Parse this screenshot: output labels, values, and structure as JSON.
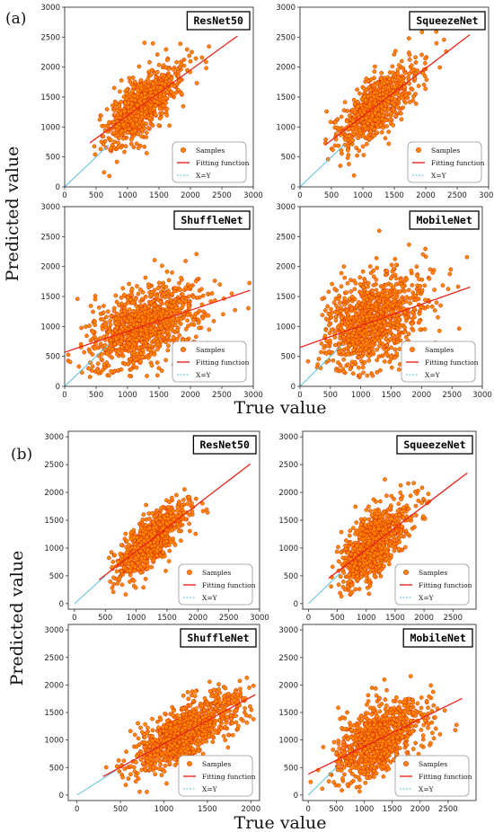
{
  "labels": {
    "panel_a": "(a)",
    "panel_b": "(b)",
    "xlabel": "True value",
    "ylabel": "Predicted value"
  },
  "legend": [
    "Samples",
    "Fitting function",
    "X=Y"
  ],
  "colors": {
    "point_fill": "#ff8c00",
    "point_edge": "#d42000",
    "fit_line": "#e8241c",
    "xy_line": "#5bc0de",
    "frame": "#333333"
  },
  "chart_data": [
    {
      "type": "scatter",
      "group": "a",
      "title": "ResNet50",
      "xlim": [
        0,
        3000
      ],
      "ylim": [
        0,
        3000
      ],
      "xticks": [
        0,
        500,
        1000,
        1500,
        2000,
        2500,
        3000
      ],
      "yticks": [
        0,
        500,
        1000,
        1500,
        2000,
        2500,
        3000
      ],
      "fit": {
        "slope": 0.76,
        "intercept": 430
      },
      "fit_range": [
        400,
        2750
      ],
      "xy_range": [
        0,
        700
      ],
      "true_mean": 1050,
      "true_sd": 380,
      "true_range": [
        400,
        2700
      ],
      "residual_sd": 230,
      "n_samples": 900,
      "series": [
        {
          "name": "Samples"
        },
        {
          "name": "Fitting function"
        },
        {
          "name": "X=Y"
        }
      ]
    },
    {
      "type": "scatter",
      "group": "a",
      "title": "SqueezeNet",
      "xlim": [
        0,
        3000
      ],
      "ylim": [
        0,
        3000
      ],
      "xticks": [
        0,
        500,
        1000,
        1500,
        2000,
        2500,
        3000
      ],
      "yticks": [
        0,
        500,
        1000,
        1500,
        2000,
        2500,
        3000
      ],
      "fit": {
        "slope": 0.8,
        "intercept": 380
      },
      "fit_range": [
        400,
        2700
      ],
      "xy_range": [
        0,
        700
      ],
      "true_mean": 1000,
      "true_sd": 400,
      "true_range": [
        400,
        2750
      ],
      "residual_sd": 240,
      "n_samples": 900,
      "series": [
        {
          "name": "Samples"
        },
        {
          "name": "Fitting function"
        },
        {
          "name": "X=Y"
        }
      ]
    },
    {
      "type": "scatter",
      "group": "a",
      "title": "ShuffleNet",
      "xlim": [
        0,
        3000
      ],
      "ylim": [
        0,
        3000
      ],
      "xticks": [
        0,
        500,
        1000,
        1500,
        2000,
        2500,
        3000
      ],
      "yticks": [
        0,
        500,
        1000,
        1500,
        2000,
        2500,
        3000
      ],
      "fit": {
        "slope": 0.35,
        "intercept": 570
      },
      "fit_range": [
        0,
        2950
      ],
      "xy_range": [
        0,
        700
      ],
      "true_mean": 1000,
      "true_sd": 600,
      "true_range": [
        0,
        2950
      ],
      "residual_sd": 330,
      "n_samples": 1000,
      "series": [
        {
          "name": "Samples"
        },
        {
          "name": "Fitting function"
        },
        {
          "name": "X=Y"
        }
      ]
    },
    {
      "type": "scatter",
      "group": "a",
      "title": "MobileNet",
      "xlim": [
        0,
        3000
      ],
      "ylim": [
        0,
        3000
      ],
      "xticks": [
        0,
        500,
        1000,
        1500,
        2000,
        2500,
        3000
      ],
      "yticks": [
        0,
        500,
        1000,
        1500,
        2000,
        2500,
        3000
      ],
      "fit": {
        "slope": 0.36,
        "intercept": 650
      },
      "fit_range": [
        0,
        2800
      ],
      "xy_range": [
        0,
        700
      ],
      "true_mean": 950,
      "true_sd": 550,
      "true_range": [
        0,
        2850
      ],
      "residual_sd": 380,
      "n_samples": 1000,
      "series": [
        {
          "name": "Samples"
        },
        {
          "name": "Fitting function"
        },
        {
          "name": "X=Y"
        }
      ]
    },
    {
      "type": "scatter",
      "group": "b",
      "title": "ResNet50",
      "xlim": [
        -100,
        3000
      ],
      "ylim": [
        -100,
        3100
      ],
      "xticks": [
        0,
        500,
        1000,
        1500,
        2000,
        2500,
        3000
      ],
      "yticks": [
        0,
        500,
        1000,
        1500,
        2000,
        2500,
        3000
      ],
      "fit": {
        "slope": 0.85,
        "intercept": 90
      },
      "fit_range": [
        400,
        2850
      ],
      "xy_range": [
        0,
        500
      ],
      "true_mean": 1050,
      "true_sd": 350,
      "true_range": [
        400,
        2800
      ],
      "residual_sd": 220,
      "n_samples": 900,
      "series": [
        {
          "name": "Samples"
        },
        {
          "name": "Fitting function"
        },
        {
          "name": "X=Y"
        }
      ]
    },
    {
      "type": "scatter",
      "group": "b",
      "title": "SqueezeNet",
      "xlim": [
        -100,
        2900
      ],
      "ylim": [
        -100,
        3100
      ],
      "xticks": [
        0,
        500,
        1000,
        1500,
        2000,
        2500
      ],
      "yticks": [
        0,
        500,
        1000,
        1500,
        2000,
        2500,
        3000
      ],
      "fit": {
        "slope": 0.79,
        "intercept": 180
      },
      "fit_range": [
        350,
        2750
      ],
      "xy_range": [
        0,
        550
      ],
      "true_mean": 950,
      "true_sd": 380,
      "true_range": [
        350,
        2750
      ],
      "residual_sd": 280,
      "n_samples": 900,
      "series": [
        {
          "name": "Samples"
        },
        {
          "name": "Fitting function"
        },
        {
          "name": "X=Y"
        }
      ]
    },
    {
      "type": "scatter",
      "group": "b",
      "title": "ShuffleNet",
      "xlim": [
        -100,
        2100
      ],
      "ylim": [
        -100,
        3100
      ],
      "xticks": [
        0,
        500,
        1000,
        1500,
        2000
      ],
      "yticks": [
        0,
        500,
        1000,
        1500,
        2000,
        2500,
        3000
      ],
      "fit": {
        "slope": 0.85,
        "intercept": 80
      },
      "fit_range": [
        300,
        2050
      ],
      "xy_range": [
        0,
        450
      ],
      "true_mean": 1050,
      "true_sd": 400,
      "true_range": [
        300,
        2050
      ],
      "residual_sd": 260,
      "n_samples": 1000,
      "series": [
        {
          "name": "Samples"
        },
        {
          "name": "Fitting function"
        },
        {
          "name": "X=Y"
        }
      ]
    },
    {
      "type": "scatter",
      "group": "b",
      "title": "MobileNet",
      "xlim": [
        -100,
        3000
      ],
      "ylim": [
        -100,
        3100
      ],
      "xticks": [
        0,
        500,
        1000,
        1500,
        2000,
        2500
      ],
      "yticks": [
        0,
        500,
        1000,
        1500,
        2000,
        2500,
        3000
      ],
      "fit": {
        "slope": 0.5,
        "intercept": 380
      },
      "fit_range": [
        0,
        2750
      ],
      "xy_range": [
        0,
        500
      ],
      "true_mean": 1000,
      "true_sd": 500,
      "true_range": [
        0,
        2800
      ],
      "residual_sd": 320,
      "n_samples": 1000,
      "series": [
        {
          "name": "Samples"
        },
        {
          "name": "Fitting function"
        },
        {
          "name": "X=Y"
        }
      ]
    }
  ]
}
